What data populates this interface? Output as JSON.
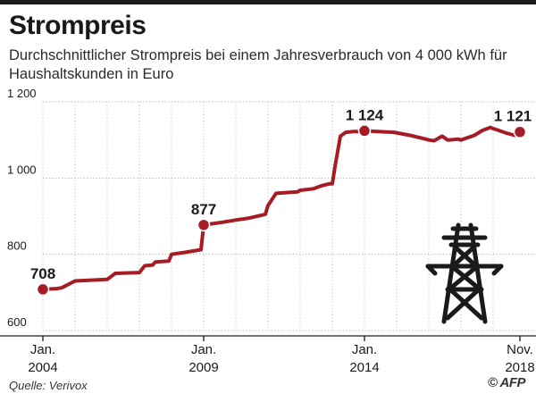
{
  "title": "Strompreis",
  "subtitle": "Durchschnittlicher Strompreis bei einem Jahresverbrauch von 4 000 kWh für Haushaltskunden in Euro",
  "source": "Quelle: Verivox",
  "credit": "© AFP",
  "icon": "power-pylon-icon",
  "colors": {
    "line": "#a61c24",
    "grid": "#bdbdbd",
    "text": "#1a1a1a"
  },
  "chart_data": {
    "type": "line",
    "ylim": [
      600,
      1200
    ],
    "yticks": [
      600,
      800,
      1000,
      1200
    ],
    "ytick_labels": [
      "600",
      "800",
      "1 000",
      "1 200"
    ],
    "xlim": [
      "2004-01",
      "2018-12"
    ],
    "xtick_labels": [
      {
        "x": "2004-01",
        "lines": [
          "Jan.",
          "2004"
        ]
      },
      {
        "x": "2009-01",
        "lines": [
          "Jan.",
          "2009"
        ]
      },
      {
        "x": "2014-01",
        "lines": [
          "Jan.",
          "2014"
        ]
      },
      {
        "x": "2018-11",
        "lines": [
          "Nov.",
          "2018"
        ]
      }
    ],
    "grid": true,
    "annotations": [
      {
        "x": "2004-01",
        "y": 708,
        "label": "708"
      },
      {
        "x": "2009-01",
        "y": 877,
        "label": "877"
      },
      {
        "x": "2014-01",
        "y": 1124,
        "label": "1 124"
      },
      {
        "x": "2018-11",
        "y": 1121,
        "label": "1 121"
      }
    ],
    "series": [
      {
        "x": [
          "2004-01",
          "2004-06",
          "2004-08",
          "2005-01",
          "2005-06",
          "2006-01",
          "2006-04",
          "2007-01",
          "2007-03",
          "2007-06",
          "2007-07",
          "2007-12",
          "2008-01",
          "2008-06",
          "2008-12",
          "2009-01",
          "2009-04",
          "2009-08",
          "2010-01",
          "2010-06",
          "2010-12",
          "2011-01",
          "2011-04",
          "2011-12",
          "2012-01",
          "2012-06",
          "2012-09",
          "2012-12",
          "2013-01",
          "2013-02",
          "2013-04",
          "2013-06",
          "2013-09",
          "2013-12",
          "2014-01",
          "2014-06",
          "2014-12",
          "2015-06",
          "2015-12",
          "2016-01",
          "2016-03",
          "2016-06",
          "2016-08",
          "2016-12",
          "2017-01",
          "2017-06",
          "2017-09",
          "2017-12",
          "2018-01",
          "2018-06",
          "2018-09",
          "2018-11"
        ],
        "values": [
          708,
          710,
          712,
          730,
          732,
          734,
          750,
          752,
          770,
          772,
          780,
          782,
          800,
          805,
          812,
          877,
          880,
          884,
          890,
          895,
          905,
          928,
          960,
          964,
          968,
          972,
          980,
          985,
          985,
          1030,
          1110,
          1120,
          1122,
          1122,
          1124,
          1122,
          1120,
          1112,
          1102,
          1100,
          1098,
          1110,
          1100,
          1102,
          1100,
          1112,
          1125,
          1133,
          1130,
          1118,
          1112,
          1121
        ]
      }
    ]
  }
}
